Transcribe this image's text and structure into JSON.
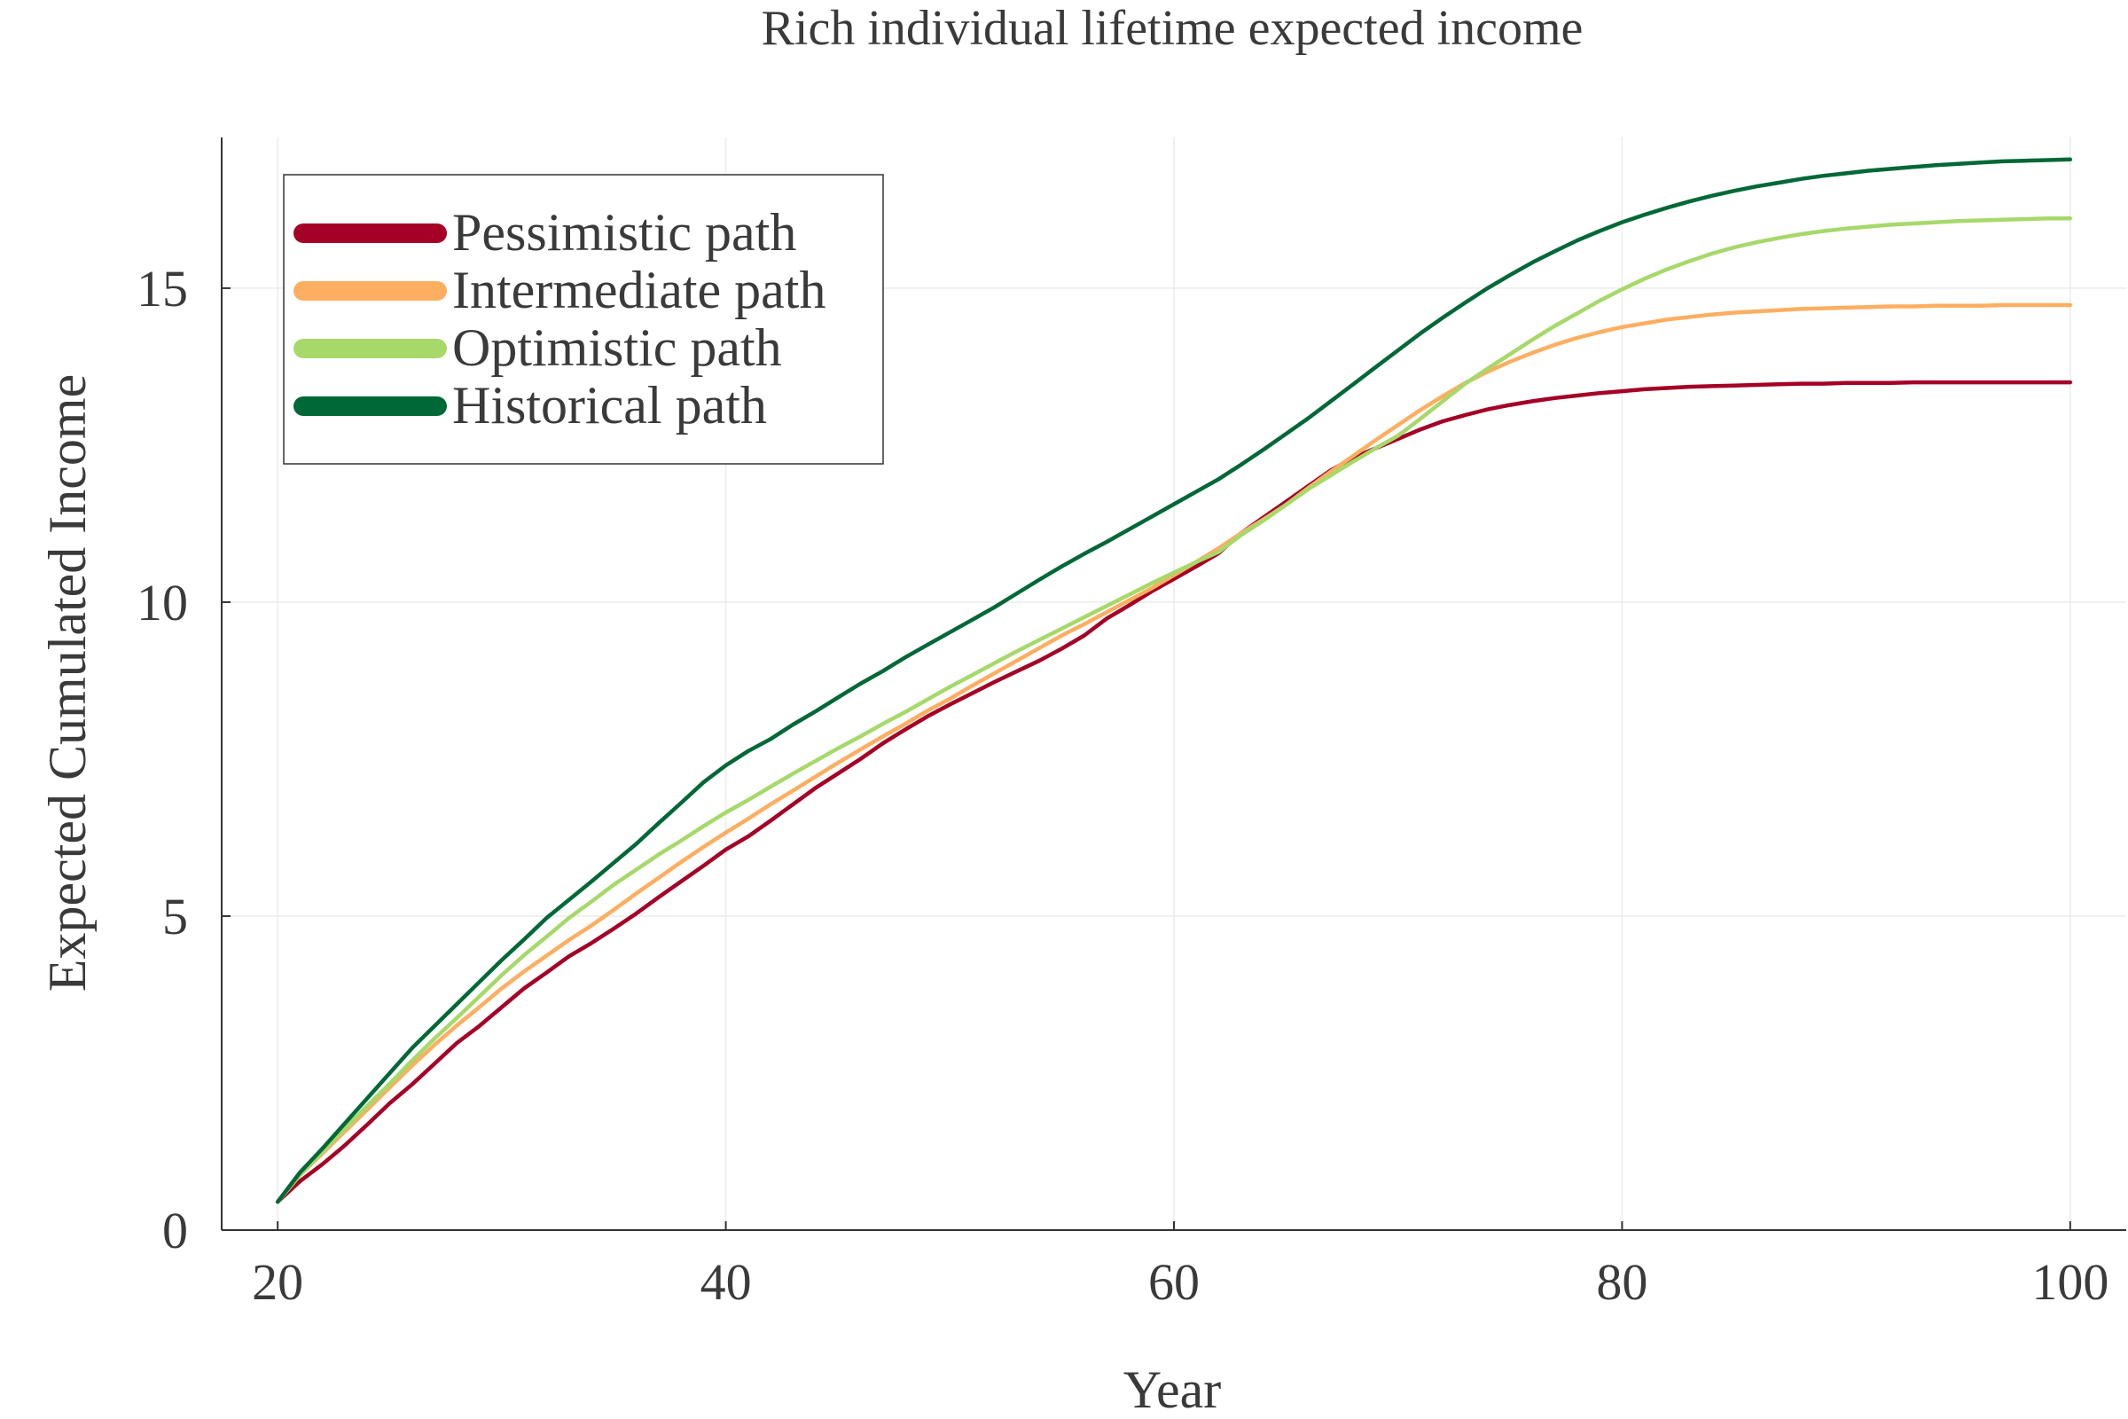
{
  "chart_data": {
    "type": "line",
    "title": "Rich individual lifetime expected income",
    "xlabel": "Year",
    "ylabel": "Expected Cumulated Income",
    "xlim": [
      17.5,
      102.5
    ],
    "ylim": [
      0,
      17.4
    ],
    "xticks": [
      20,
      40,
      60,
      80,
      100
    ],
    "yticks": [
      0,
      5,
      10,
      15
    ],
    "grid": true,
    "legend_position": "top-left",
    "x": [
      20,
      21,
      22,
      23,
      24,
      25,
      26,
      27,
      28,
      29,
      30,
      31,
      32,
      33,
      34,
      35,
      36,
      37,
      38,
      39,
      40,
      41,
      42,
      43,
      44,
      45,
      46,
      47,
      48,
      49,
      50,
      51,
      52,
      53,
      54,
      55,
      56,
      57,
      58,
      59,
      60,
      61,
      62,
      63,
      64,
      65,
      66,
      67,
      68,
      69,
      70,
      71,
      72,
      73,
      74,
      75,
      76,
      77,
      78,
      79,
      80,
      81,
      82,
      83,
      84,
      85,
      86,
      87,
      88,
      89,
      90,
      91,
      92,
      93,
      94,
      95,
      96,
      97,
      98,
      99,
      100
    ],
    "series": [
      {
        "name": "Pessimistic path",
        "color": "#a50026",
        "values": [
          0.45,
          0.78,
          1.05,
          1.35,
          1.68,
          2.02,
          2.32,
          2.65,
          2.98,
          3.25,
          3.55,
          3.85,
          4.1,
          4.36,
          4.57,
          4.8,
          5.04,
          5.3,
          5.55,
          5.8,
          6.06,
          6.27,
          6.52,
          6.78,
          7.04,
          7.27,
          7.5,
          7.75,
          7.97,
          8.18,
          8.37,
          8.55,
          8.73,
          8.9,
          9.07,
          9.26,
          9.47,
          9.74,
          9.95,
          10.17,
          10.37,
          10.57,
          10.78,
          11.1,
          11.35,
          11.6,
          11.85,
          12.1,
          12.3,
          12.45,
          12.6,
          12.75,
          12.88,
          12.98,
          13.07,
          13.14,
          13.2,
          13.25,
          13.29,
          13.33,
          13.36,
          13.39,
          13.41,
          13.43,
          13.44,
          13.45,
          13.46,
          13.47,
          13.48,
          13.48,
          13.49,
          13.49,
          13.49,
          13.5,
          13.5,
          13.5,
          13.5,
          13.5,
          13.5,
          13.5,
          13.5
        ]
      },
      {
        "name": "Intermediate path",
        "color": "#fdae61",
        "values": [
          0.45,
          0.88,
          1.22,
          1.57,
          1.92,
          2.27,
          2.62,
          2.95,
          3.26,
          3.55,
          3.85,
          4.12,
          4.37,
          4.62,
          4.85,
          5.1,
          5.36,
          5.61,
          5.86,
          6.1,
          6.33,
          6.55,
          6.78,
          7.0,
          7.22,
          7.44,
          7.65,
          7.86,
          8.06,
          8.27,
          8.46,
          8.67,
          8.87,
          9.07,
          9.27,
          9.47,
          9.65,
          9.84,
          10.03,
          10.22,
          10.43,
          10.64,
          10.86,
          11.1,
          11.32,
          11.55,
          11.82,
          12.08,
          12.33,
          12.58,
          12.82,
          13.06,
          13.28,
          13.49,
          13.67,
          13.83,
          13.97,
          14.1,
          14.21,
          14.3,
          14.38,
          14.44,
          14.5,
          14.54,
          14.58,
          14.61,
          14.63,
          14.65,
          14.67,
          14.68,
          14.69,
          14.7,
          14.71,
          14.71,
          14.72,
          14.72,
          14.72,
          14.73,
          14.73,
          14.73,
          14.73
        ]
      },
      {
        "name": "Optimistic path",
        "color": "#a6d96a",
        "values": [
          0.45,
          0.88,
          1.25,
          1.62,
          1.98,
          2.33,
          2.7,
          3.05,
          3.38,
          3.72,
          4.06,
          4.38,
          4.67,
          4.97,
          5.23,
          5.5,
          5.74,
          5.98,
          6.2,
          6.43,
          6.65,
          6.85,
          7.06,
          7.27,
          7.47,
          7.67,
          7.86,
          8.06,
          8.25,
          8.45,
          8.65,
          8.84,
          9.03,
          9.22,
          9.4,
          9.58,
          9.76,
          9.94,
          10.12,
          10.3,
          10.47,
          10.64,
          10.8,
          11.07,
          11.3,
          11.55,
          11.8,
          12.02,
          12.24,
          12.45,
          12.65,
          12.92,
          13.2,
          13.48,
          13.72,
          13.95,
          14.18,
          14.4,
          14.6,
          14.8,
          14.98,
          15.15,
          15.3,
          15.43,
          15.55,
          15.65,
          15.73,
          15.8,
          15.86,
          15.91,
          15.95,
          15.98,
          16.01,
          16.03,
          16.05,
          16.07,
          16.08,
          16.09,
          16.1,
          16.11,
          16.11
        ]
      },
      {
        "name": "Historical path",
        "color": "#006837",
        "values": [
          0.45,
          0.92,
          1.3,
          1.7,
          2.1,
          2.5,
          2.9,
          3.25,
          3.6,
          3.95,
          4.3,
          4.63,
          4.97,
          5.26,
          5.55,
          5.85,
          6.15,
          6.48,
          6.8,
          7.13,
          7.4,
          7.63,
          7.82,
          8.05,
          8.26,
          8.48,
          8.7,
          8.9,
          9.12,
          9.32,
          9.52,
          9.72,
          9.92,
          10.14,
          10.36,
          10.57,
          10.77,
          10.96,
          11.16,
          11.36,
          11.56,
          11.76,
          11.96,
          12.19,
          12.43,
          12.68,
          12.93,
          13.2,
          13.47,
          13.74,
          14.01,
          14.28,
          14.53,
          14.77,
          15.0,
          15.21,
          15.41,
          15.59,
          15.76,
          15.91,
          16.05,
          16.17,
          16.28,
          16.38,
          16.47,
          16.55,
          16.62,
          16.68,
          16.74,
          16.79,
          16.83,
          16.87,
          16.9,
          16.93,
          16.96,
          16.98,
          17.0,
          17.02,
          17.03,
          17.04,
          17.05
        ]
      }
    ]
  }
}
